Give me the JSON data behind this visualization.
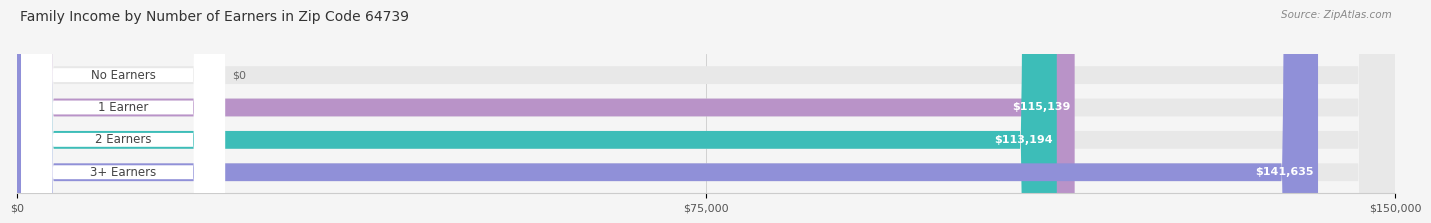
{
  "title": "Family Income by Number of Earners in Zip Code 64739",
  "source": "Source: ZipAtlas.com",
  "categories": [
    "No Earners",
    "1 Earner",
    "2 Earners",
    "3+ Earners"
  ],
  "values": [
    0,
    115139,
    113194,
    141635
  ],
  "bar_colors": [
    "#a8c4e0",
    "#b993c8",
    "#3dbdb8",
    "#9090d8"
  ],
  "xlim": [
    0,
    150000
  ],
  "xtick_labels": [
    "$0",
    "$75,000",
    "$150,000"
  ],
  "bg_color": "#f5f5f5",
  "bar_bg_color": "#e8e8e8",
  "title_fontsize": 10,
  "source_fontsize": 7.5,
  "label_fontsize": 8.5,
  "value_fontsize": 8,
  "tick_fontsize": 8
}
